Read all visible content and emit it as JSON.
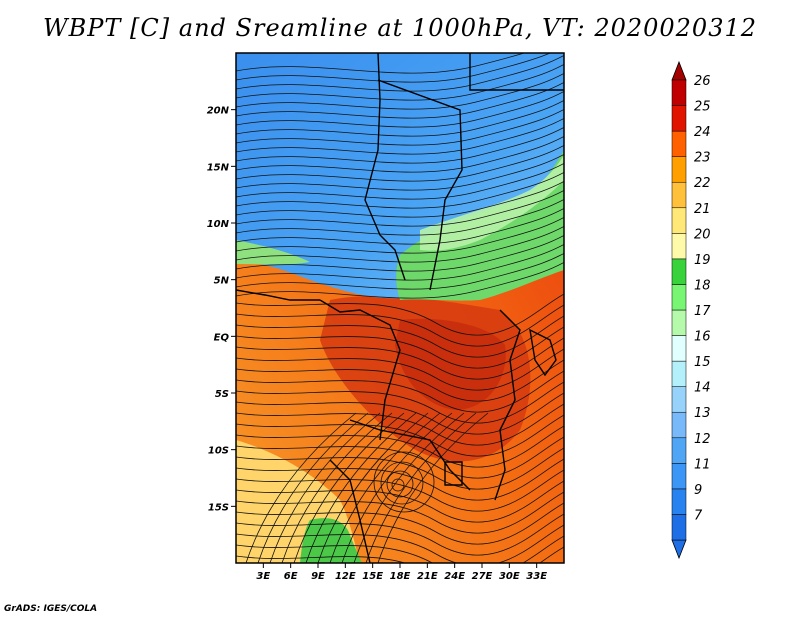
{
  "title": "WBPT [C] and Sreamline at 1000hPa, VT: 2020020312",
  "credit": "GrADS: IGES/COLA",
  "map": {
    "lon_range": [
      0,
      36
    ],
    "lat_range": [
      -20,
      25
    ],
    "x_ticks": [
      {
        "value": 3,
        "label": "3E"
      },
      {
        "value": 6,
        "label": "6E"
      },
      {
        "value": 9,
        "label": "9E"
      },
      {
        "value": 12,
        "label": "12E"
      },
      {
        "value": 15,
        "label": "15E"
      },
      {
        "value": 18,
        "label": "18E"
      },
      {
        "value": 21,
        "label": "21E"
      },
      {
        "value": 24,
        "label": "24E"
      },
      {
        "value": 27,
        "label": "27E"
      },
      {
        "value": 30,
        "label": "30E"
      },
      {
        "value": 33,
        "label": "33E"
      }
    ],
    "y_ticks": [
      {
        "value": 20,
        "label": "20N"
      },
      {
        "value": 15,
        "label": "15N"
      },
      {
        "value": 10,
        "label": "10N"
      },
      {
        "value": 5,
        "label": "5N"
      },
      {
        "value": 0,
        "label": "EQ"
      },
      {
        "value": -5,
        "label": "5S"
      },
      {
        "value": -10,
        "label": "10S"
      },
      {
        "value": -15,
        "label": "15S"
      }
    ]
  },
  "colorbar": {
    "levels": [
      {
        "label": "7",
        "color": "#1e6ee6"
      },
      {
        "label": "9",
        "color": "#2882f0"
      },
      {
        "label": "11",
        "color": "#3c96f5"
      },
      {
        "label": "12",
        "color": "#50a5f5"
      },
      {
        "label": "13",
        "color": "#78b9fa"
      },
      {
        "label": "14",
        "color": "#96d2fa"
      },
      {
        "label": "15",
        "color": "#b4f0fa"
      },
      {
        "label": "16",
        "color": "#e1ffff"
      },
      {
        "label": "17",
        "color": "#b4faaa"
      },
      {
        "label": "18",
        "color": "#78f573"
      },
      {
        "label": "19",
        "color": "#37d23c"
      },
      {
        "label": "20",
        "color": "#fffaaa"
      },
      {
        "label": "21",
        "color": "#ffe878"
      },
      {
        "label": "22",
        "color": "#ffc03c"
      },
      {
        "label": "23",
        "color": "#ffa000"
      },
      {
        "label": "24",
        "color": "#ff6000"
      },
      {
        "label": "25",
        "color": "#e11400"
      },
      {
        "label": "26",
        "color": "#c00000"
      }
    ],
    "top_arrow_color": "#a50000",
    "bottom_arrow_color": "#1e6ee6"
  },
  "colors": {
    "cold_blue": "#4aa0f2",
    "deep_blue": "#2d86ec",
    "green_band": "#6ed86a",
    "pale_green": "#b4f0a8",
    "hot_orange": "#f06a10",
    "red_core": "#d23410",
    "yellow_south": "#ffe27a"
  }
}
